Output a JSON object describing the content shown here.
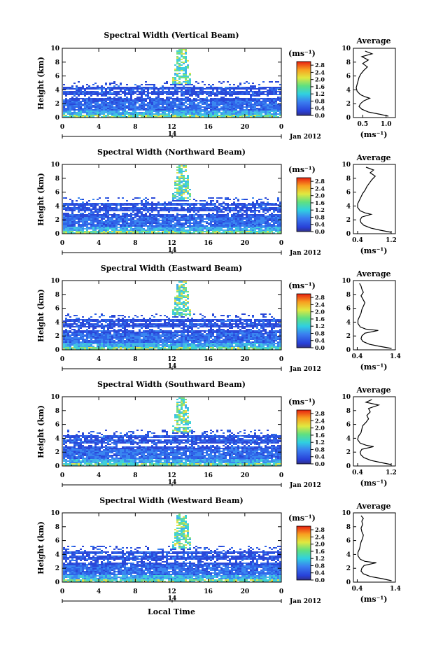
{
  "page": {
    "date_label": "Jan 2012",
    "day_marker": "14",
    "xlabel": "Local Time",
    "ylabel": "Height (km)",
    "colorbar_unit": "(ms⁻¹)",
    "avg_unit": "(ms⁻¹)",
    "avg_title": "Average"
  },
  "chart_data": [
    {
      "type": "heatmap",
      "title": "Spectral Width (Vertical Beam)",
      "x_ticks": [
        "0",
        "4",
        "8",
        "12",
        "16",
        "20",
        "0"
      ],
      "y_ticks": [
        "0",
        "2",
        "4",
        "6",
        "8",
        "10"
      ],
      "xlim": [
        0,
        24
      ],
      "ylim": [
        0,
        10
      ],
      "colorbar_ticks": [
        "0.0",
        "0.4",
        "0.8",
        "1.2",
        "1.6",
        "2.0",
        "2.4",
        "2.8"
      ],
      "colorbar_range": [
        0,
        3.0
      ],
      "average_profile": {
        "xlim": [
          0.3,
          1.2
        ],
        "x_ticks": [
          "0.5",
          "1.0"
        ],
        "x_tick_values": [
          0.5,
          1.0
        ],
        "heights": [
          0.2,
          0.5,
          0.8,
          1.2,
          1.6,
          2.0,
          2.4,
          2.8,
          3.0,
          3.3,
          3.8,
          4.3,
          4.8,
          5.3,
          5.8,
          6.3,
          6.8,
          7.3,
          7.8,
          8.3,
          8.8,
          9.2,
          9.6
        ],
        "values": [
          1.05,
          0.85,
          0.62,
          0.48,
          0.42,
          0.45,
          0.52,
          0.65,
          0.55,
          0.45,
          0.38,
          0.36,
          0.38,
          0.4,
          0.42,
          0.46,
          0.52,
          0.6,
          0.5,
          0.62,
          0.48,
          0.7,
          0.55
        ]
      }
    },
    {
      "type": "heatmap",
      "title": "Spectral Width (Northward Beam)",
      "x_ticks": [
        "0",
        "4",
        "8",
        "12",
        "16",
        "20",
        "0"
      ],
      "y_ticks": [
        "0",
        "2",
        "4",
        "6",
        "8",
        "10"
      ],
      "xlim": [
        0,
        24
      ],
      "ylim": [
        0,
        10
      ],
      "colorbar_ticks": [
        "0.0",
        "0.4",
        "0.8",
        "1.2",
        "1.6",
        "2.0",
        "2.4",
        "2.8"
      ],
      "colorbar_range": [
        0,
        3.0
      ],
      "average_profile": {
        "xlim": [
          0.3,
          1.3
        ],
        "x_ticks": [
          "0.4",
          "1.2"
        ],
        "x_tick_values": [
          0.4,
          1.2
        ],
        "heights": [
          0.2,
          0.5,
          0.8,
          1.2,
          1.6,
          2.0,
          2.4,
          2.8,
          3.0,
          3.3,
          3.8,
          4.3,
          4.8,
          5.3,
          5.8,
          6.3,
          6.8,
          7.3,
          7.8,
          8.3,
          8.8,
          9.2,
          9.6
        ],
        "values": [
          1.2,
          0.95,
          0.72,
          0.55,
          0.48,
          0.46,
          0.5,
          0.72,
          0.58,
          0.46,
          0.4,
          0.4,
          0.44,
          0.48,
          0.52,
          0.58,
          0.62,
          0.68,
          0.74,
          0.82,
          0.7,
          0.78,
          0.6
        ]
      }
    },
    {
      "type": "heatmap",
      "title": "Spectral Width (Eastward Beam)",
      "x_ticks": [
        "0",
        "4",
        "8",
        "12",
        "16",
        "20",
        "0"
      ],
      "y_ticks": [
        "0",
        "2",
        "4",
        "6",
        "8",
        "10"
      ],
      "xlim": [
        0,
        24
      ],
      "ylim": [
        0,
        10
      ],
      "colorbar_ticks": [
        "0.0",
        "0.4",
        "0.8",
        "1.2",
        "1.6",
        "2.0",
        "2.4",
        "2.8"
      ],
      "colorbar_range": [
        0,
        3.0
      ],
      "average_profile": {
        "xlim": [
          0.3,
          1.4
        ],
        "x_ticks": [
          "0.4",
          "1.4"
        ],
        "x_tick_values": [
          0.4,
          1.4
        ],
        "heights": [
          0.2,
          0.5,
          0.8,
          1.2,
          1.6,
          2.0,
          2.4,
          2.8,
          3.0,
          3.3,
          3.8,
          4.3,
          4.8,
          5.3,
          5.8,
          6.3,
          6.8,
          7.3,
          7.8,
          8.3,
          8.8,
          9.2,
          9.6
        ],
        "values": [
          1.3,
          1.0,
          0.72,
          0.55,
          0.5,
          0.52,
          0.6,
          0.95,
          0.62,
          0.48,
          0.42,
          0.42,
          0.46,
          0.5,
          0.52,
          0.56,
          0.6,
          0.55,
          0.5,
          0.56,
          0.52,
          0.5,
          0.46
        ]
      }
    },
    {
      "type": "heatmap",
      "title": "Spectral Width (Southward Beam)",
      "x_ticks": [
        "0",
        "4",
        "8",
        "12",
        "16",
        "20",
        "0"
      ],
      "y_ticks": [
        "0",
        "2",
        "4",
        "6",
        "8",
        "10"
      ],
      "xlim": [
        0,
        24
      ],
      "ylim": [
        0,
        10
      ],
      "colorbar_ticks": [
        "0.0",
        "0.4",
        "0.8",
        "1.2",
        "1.6",
        "2.0",
        "2.4",
        "2.8"
      ],
      "colorbar_range": [
        0,
        3.0
      ],
      "average_profile": {
        "xlim": [
          0.3,
          1.3
        ],
        "x_ticks": [
          "0.4",
          "1.2"
        ],
        "x_tick_values": [
          0.4,
          1.2
        ],
        "heights": [
          0.2,
          0.5,
          0.8,
          1.2,
          1.6,
          2.0,
          2.4,
          2.8,
          3.0,
          3.3,
          3.8,
          4.3,
          4.8,
          5.3,
          5.8,
          6.3,
          6.8,
          7.3,
          7.8,
          8.3,
          8.8,
          9.2,
          9.6
        ],
        "values": [
          1.2,
          0.95,
          0.72,
          0.55,
          0.48,
          0.46,
          0.5,
          0.78,
          0.6,
          0.46,
          0.4,
          0.42,
          0.48,
          0.5,
          0.52,
          0.6,
          0.66,
          0.62,
          0.7,
          0.66,
          0.9,
          0.6,
          0.74
        ]
      }
    },
    {
      "type": "heatmap",
      "title": "Spectral Width (Westward Beam)",
      "x_ticks": [
        "0",
        "4",
        "8",
        "12",
        "16",
        "20",
        "0"
      ],
      "y_ticks": [
        "0",
        "2",
        "4",
        "6",
        "8",
        "10"
      ],
      "xlim": [
        0,
        24
      ],
      "ylim": [
        0,
        10
      ],
      "colorbar_ticks": [
        "0.0",
        "0.4",
        "0.8",
        "1.2",
        "1.6",
        "2.0",
        "2.4",
        "2.8"
      ],
      "colorbar_range": [
        0,
        3.0
      ],
      "average_profile": {
        "xlim": [
          0.3,
          1.4
        ],
        "x_ticks": [
          "0.4",
          "1.4"
        ],
        "x_tick_values": [
          0.4,
          1.4
        ],
        "heights": [
          0.2,
          0.5,
          0.8,
          1.2,
          1.6,
          2.0,
          2.4,
          2.8,
          3.0,
          3.3,
          3.8,
          4.3,
          4.8,
          5.3,
          5.8,
          6.3,
          6.8,
          7.3,
          7.8,
          8.3,
          8.8,
          9.2,
          9.6
        ],
        "values": [
          1.3,
          1.05,
          0.75,
          0.56,
          0.5,
          0.52,
          0.58,
          0.9,
          0.6,
          0.48,
          0.42,
          0.42,
          0.46,
          0.48,
          0.5,
          0.54,
          0.56,
          0.52,
          0.5,
          0.54,
          0.52,
          0.56,
          0.5
        ]
      }
    }
  ]
}
